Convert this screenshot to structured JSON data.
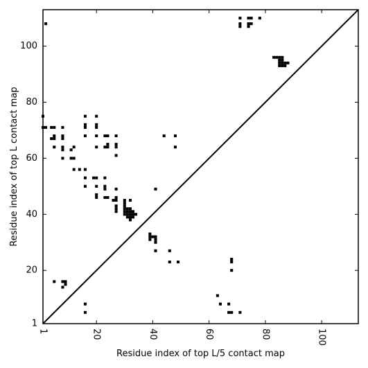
{
  "chart_data": {
    "type": "scatter",
    "subtype": "contact-map",
    "xlabel": "Residue index of top L/5 contact map",
    "ylabel": "Residue index of top L contact map",
    "xlim": [
      1,
      113
    ],
    "ylim": [
      1,
      113
    ],
    "x_ticks": [
      1,
      20,
      40,
      60,
      80,
      100
    ],
    "y_ticks": [
      1,
      20,
      40,
      60,
      80,
      100
    ],
    "diagonal": true,
    "marker": "square",
    "marker_color": "#000000",
    "grid": false,
    "series": [
      {
        "region": "upper-left",
        "points": [
          [
            2,
            108
          ],
          [
            1,
            75
          ],
          [
            1,
            71
          ],
          [
            2,
            71
          ],
          [
            4,
            71
          ],
          [
            5,
            71
          ],
          [
            8,
            71
          ],
          [
            4,
            67
          ],
          [
            5,
            67
          ],
          [
            5,
            68
          ],
          [
            8,
            67
          ],
          [
            8,
            68
          ],
          [
            5,
            64
          ],
          [
            8,
            63
          ],
          [
            8,
            64
          ],
          [
            8,
            60
          ],
          [
            11,
            63
          ],
          [
            12,
            64
          ],
          [
            11,
            60
          ],
          [
            12,
            60
          ],
          [
            12,
            56
          ],
          [
            14,
            56
          ],
          [
            16,
            56
          ],
          [
            16,
            75
          ],
          [
            16,
            71
          ],
          [
            16,
            72
          ],
          [
            16,
            68
          ],
          [
            16,
            53
          ],
          [
            16,
            50
          ],
          [
            20,
            75
          ],
          [
            20,
            71
          ],
          [
            20,
            72
          ],
          [
            20,
            68
          ],
          [
            20,
            64
          ],
          [
            19,
            53
          ],
          [
            20,
            53
          ],
          [
            20,
            50
          ],
          [
            20,
            46
          ],
          [
            20,
            47
          ],
          [
            23,
            68
          ],
          [
            24,
            68
          ],
          [
            23,
            64
          ],
          [
            24,
            64
          ],
          [
            24,
            65
          ],
          [
            23,
            53
          ],
          [
            23,
            49
          ],
          [
            23,
            50
          ],
          [
            23,
            46
          ],
          [
            24,
            46
          ],
          [
            27,
            68
          ],
          [
            27,
            64
          ],
          [
            27,
            65
          ],
          [
            27,
            61
          ],
          [
            27,
            49
          ],
          [
            26,
            45
          ],
          [
            27,
            45
          ],
          [
            27,
            46
          ],
          [
            27,
            41
          ],
          [
            27,
            42
          ],
          [
            27,
            43
          ],
          [
            30,
            44
          ],
          [
            30,
            45
          ],
          [
            32,
            45
          ],
          [
            30,
            40
          ],
          [
            30,
            41
          ],
          [
            30,
            42
          ],
          [
            30,
            43
          ],
          [
            31,
            40
          ],
          [
            31,
            41
          ],
          [
            31,
            42
          ],
          [
            31,
            39
          ],
          [
            32,
            38
          ],
          [
            32,
            39
          ],
          [
            32,
            40
          ],
          [
            32,
            41
          ],
          [
            32,
            42
          ],
          [
            33,
            39
          ],
          [
            33,
            40
          ],
          [
            33,
            41
          ],
          [
            34,
            40
          ],
          [
            39,
            31
          ],
          [
            39,
            32
          ],
          [
            39,
            33
          ],
          [
            40,
            32
          ],
          [
            41,
            30
          ],
          [
            41,
            31
          ],
          [
            41,
            32
          ],
          [
            41,
            27
          ],
          [
            41,
            49
          ],
          [
            44,
            68
          ],
          [
            48,
            68
          ],
          [
            48,
            64
          ]
        ]
      },
      {
        "region": "lower-right",
        "points": [
          [
            71,
            107
          ],
          [
            71,
            108
          ],
          [
            71,
            110
          ],
          [
            74,
            107
          ],
          [
            74,
            108
          ],
          [
            74,
            110
          ],
          [
            75,
            108
          ],
          [
            75,
            110
          ],
          [
            78,
            110
          ],
          [
            83,
            96
          ],
          [
            84,
            96
          ],
          [
            85,
            96
          ],
          [
            86,
            96
          ],
          [
            85,
            95
          ],
          [
            86,
            95
          ],
          [
            85,
            93
          ],
          [
            85,
            94
          ],
          [
            86,
            93
          ],
          [
            86,
            94
          ],
          [
            87,
            93
          ],
          [
            87,
            94
          ],
          [
            88,
            94
          ],
          [
            46,
            27
          ],
          [
            46,
            23
          ],
          [
            49,
            23
          ],
          [
            68,
            23
          ],
          [
            68,
            24
          ],
          [
            68,
            20
          ],
          [
            5,
            16
          ],
          [
            8,
            16
          ],
          [
            9,
            15
          ],
          [
            9,
            16
          ],
          [
            8,
            14
          ],
          [
            63,
            11
          ],
          [
            64,
            8
          ],
          [
            67,
            8
          ],
          [
            67,
            5
          ],
          [
            68,
            5
          ],
          [
            71,
            5
          ],
          [
            16,
            8
          ],
          [
            16,
            5
          ]
        ]
      }
    ]
  }
}
